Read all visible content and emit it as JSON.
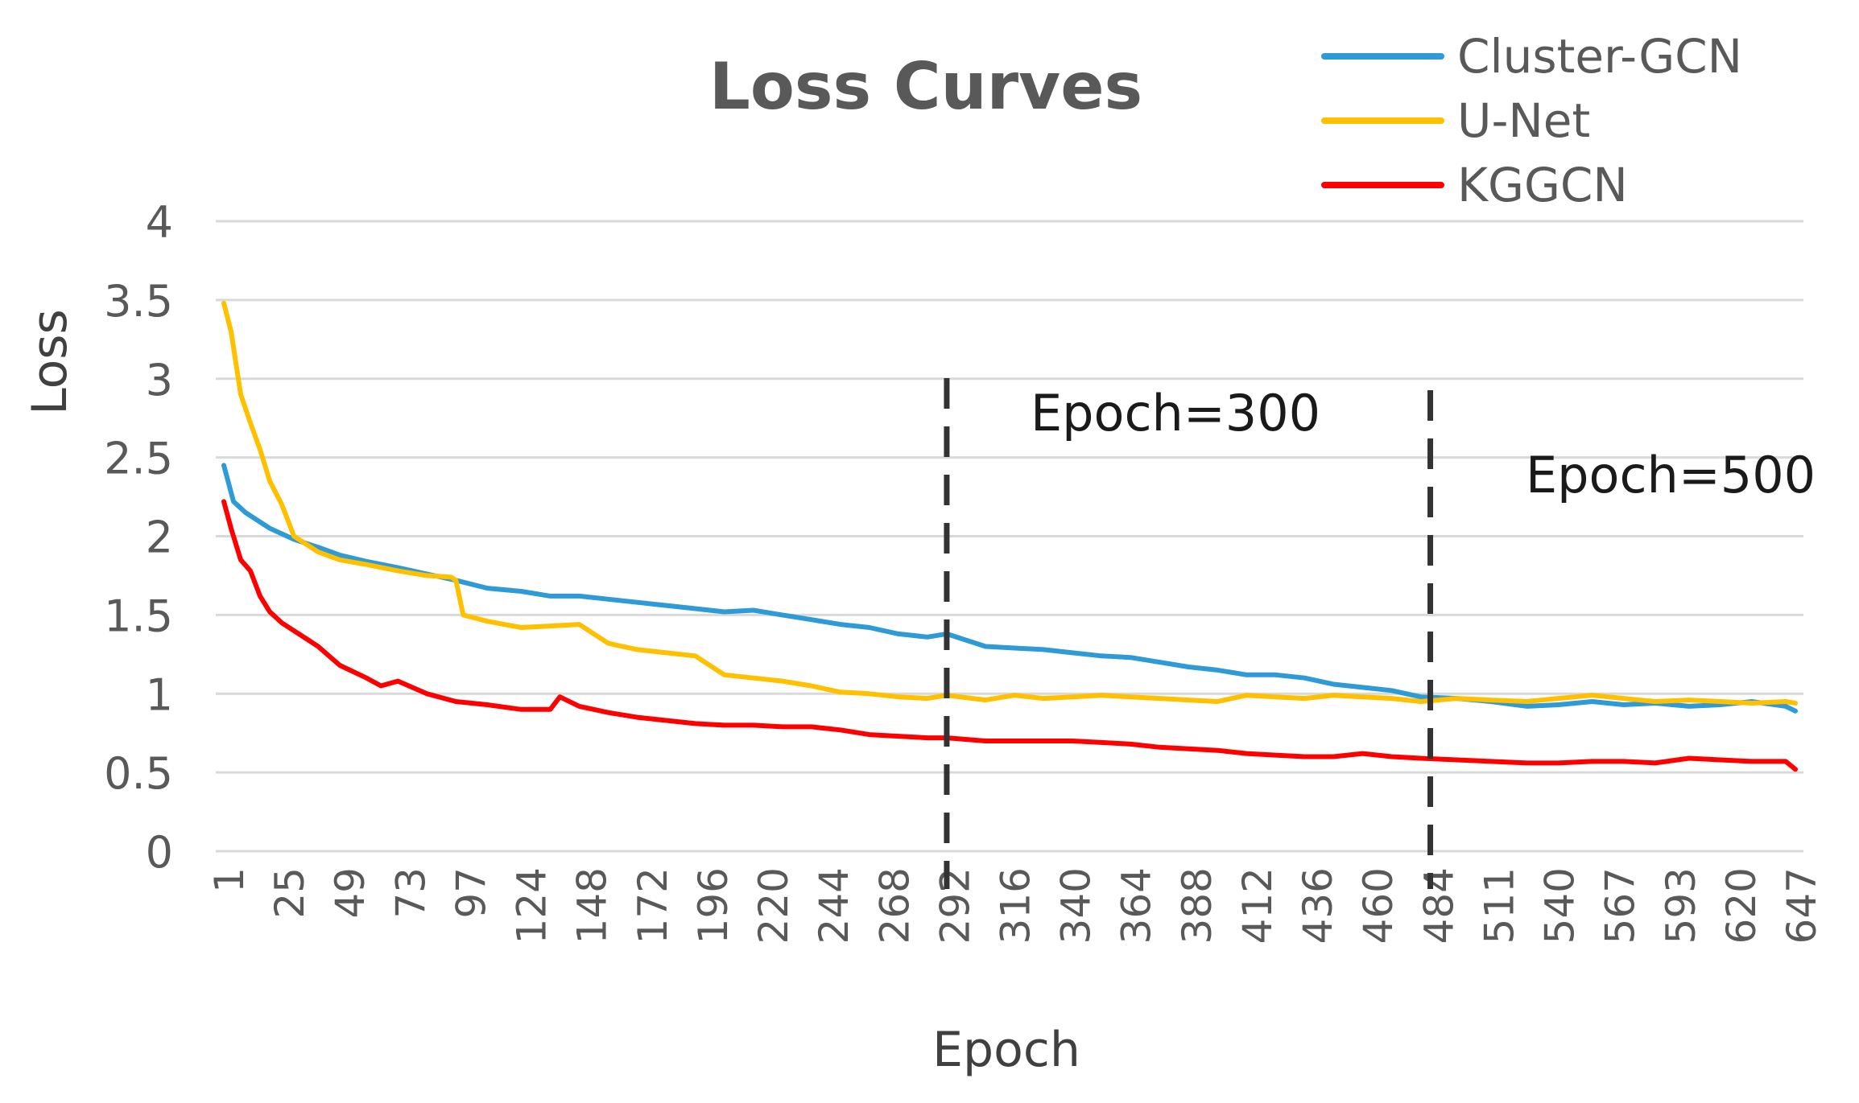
{
  "chart_data": {
    "type": "line",
    "title": "Loss Curves",
    "xlabel": "Epoch",
    "ylabel": "Loss",
    "ylim": [
      0,
      4
    ],
    "xlim": [
      1,
      651
    ],
    "grid": true,
    "legend_position": "top-right",
    "y_ticks": [
      "0",
      "0.5",
      "1",
      "1.5",
      "2",
      "2.5",
      "3",
      "3.5",
      "4"
    ],
    "x_ticks": [
      "1",
      "25",
      "49",
      "73",
      "97",
      "124",
      "148",
      "172",
      "196",
      "220",
      "244",
      "268",
      "292",
      "316",
      "340",
      "364",
      "388",
      "412",
      "436",
      "460",
      "484",
      "511",
      "540",
      "567",
      "593",
      "620",
      "647"
    ],
    "series": [
      {
        "name": "Cluster-GCN",
        "color": "#2E9AD6",
        "x": [
          1,
          5,
          10,
          20,
          30,
          40,
          49,
          60,
          73,
          85,
          97,
          110,
          124,
          136,
          148,
          160,
          172,
          184,
          196,
          208,
          220,
          232,
          244,
          256,
          268,
          280,
          292,
          300,
          316,
          328,
          340,
          352,
          364,
          376,
          388,
          400,
          412,
          424,
          436,
          448,
          460,
          472,
          484,
          496,
          511,
          525,
          540,
          553,
          567,
          580,
          593,
          607,
          620,
          633,
          647,
          651
        ],
        "y": [
          2.45,
          2.22,
          2.15,
          2.05,
          1.98,
          1.93,
          1.88,
          1.84,
          1.8,
          1.76,
          1.72,
          1.67,
          1.65,
          1.62,
          1.62,
          1.6,
          1.58,
          1.56,
          1.54,
          1.52,
          1.53,
          1.5,
          1.47,
          1.44,
          1.42,
          1.38,
          1.36,
          1.38,
          1.3,
          1.29,
          1.28,
          1.26,
          1.24,
          1.23,
          1.2,
          1.17,
          1.15,
          1.12,
          1.12,
          1.1,
          1.06,
          1.04,
          1.02,
          0.98,
          0.97,
          0.95,
          0.92,
          0.93,
          0.95,
          0.93,
          0.94,
          0.92,
          0.93,
          0.95,
          0.92,
          0.89
        ]
      },
      {
        "name": "U-Net",
        "color": "#FFC000",
        "x": [
          1,
          4,
          8,
          12,
          16,
          20,
          25,
          30,
          35,
          40,
          49,
          60,
          73,
          85,
          95,
          97,
          100,
          110,
          124,
          136,
          148,
          160,
          172,
          184,
          196,
          208,
          220,
          232,
          244,
          256,
          268,
          280,
          292,
          300,
          316,
          328,
          340,
          352,
          364,
          376,
          388,
          400,
          412,
          424,
          436,
          448,
          460,
          472,
          484,
          496,
          511,
          525,
          540,
          553,
          567,
          580,
          593,
          607,
          620,
          633,
          647,
          651
        ],
        "y": [
          3.48,
          3.3,
          2.9,
          2.72,
          2.55,
          2.35,
          2.2,
          2.0,
          1.95,
          1.9,
          1.85,
          1.82,
          1.78,
          1.75,
          1.74,
          1.72,
          1.5,
          1.46,
          1.42,
          1.43,
          1.44,
          1.32,
          1.28,
          1.26,
          1.24,
          1.12,
          1.1,
          1.08,
          1.05,
          1.01,
          1.0,
          0.98,
          0.97,
          0.99,
          0.96,
          0.99,
          0.97,
          0.98,
          0.99,
          0.98,
          0.97,
          0.96,
          0.95,
          0.99,
          0.98,
          0.97,
          0.99,
          0.98,
          0.97,
          0.95,
          0.97,
          0.96,
          0.95,
          0.97,
          0.99,
          0.97,
          0.95,
          0.96,
          0.95,
          0.94,
          0.95,
          0.94
        ]
      },
      {
        "name": "KGGCN",
        "color": "#FF0000",
        "x": [
          1,
          4,
          8,
          12,
          16,
          20,
          25,
          30,
          35,
          40,
          49,
          60,
          66,
          73,
          85,
          97,
          110,
          124,
          136,
          140,
          148,
          160,
          172,
          184,
          196,
          208,
          220,
          232,
          244,
          256,
          268,
          280,
          292,
          300,
          316,
          328,
          340,
          352,
          364,
          376,
          388,
          400,
          412,
          424,
          436,
          448,
          460,
          472,
          484,
          496,
          511,
          525,
          540,
          553,
          567,
          580,
          593,
          607,
          620,
          633,
          647,
          651
        ],
        "y": [
          2.22,
          2.05,
          1.85,
          1.78,
          1.62,
          1.52,
          1.45,
          1.4,
          1.35,
          1.3,
          1.18,
          1.1,
          1.05,
          1.08,
          1.0,
          0.95,
          0.93,
          0.9,
          0.9,
          0.98,
          0.92,
          0.88,
          0.85,
          0.83,
          0.81,
          0.8,
          0.8,
          0.79,
          0.79,
          0.77,
          0.74,
          0.73,
          0.72,
          0.72,
          0.7,
          0.7,
          0.7,
          0.7,
          0.69,
          0.68,
          0.66,
          0.65,
          0.64,
          0.62,
          0.61,
          0.6,
          0.6,
          0.62,
          0.6,
          0.59,
          0.58,
          0.57,
          0.56,
          0.56,
          0.57,
          0.57,
          0.56,
          0.59,
          0.58,
          0.57,
          0.57,
          0.52
        ]
      }
    ],
    "annotations": [
      {
        "text": "Epoch=300",
        "epoch": 300,
        "line_style": "dashed"
      },
      {
        "text": "Epoch=500",
        "epoch": 500,
        "line_style": "dashed"
      }
    ]
  }
}
